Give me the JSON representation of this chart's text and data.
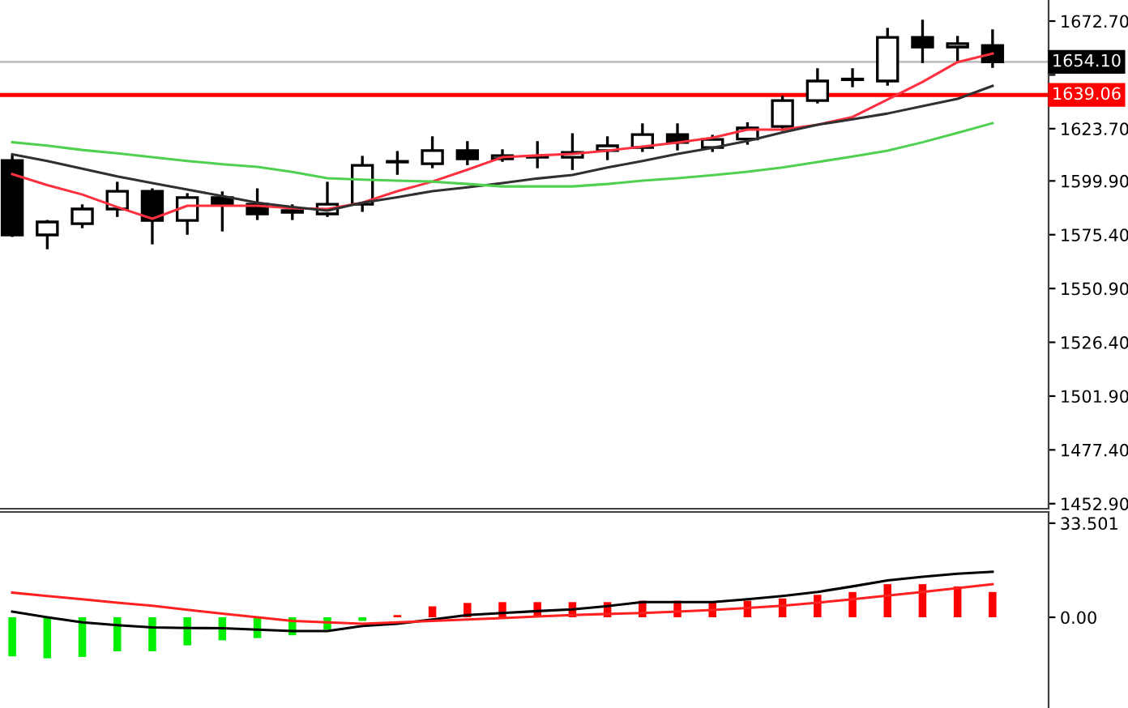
{
  "chart_data": [
    {
      "type": "candlestick",
      "categories": [
        null,
        null,
        null,
        null,
        null,
        null,
        null,
        null,
        null,
        null,
        null,
        null,
        null,
        null,
        null,
        null,
        null,
        null,
        null,
        null,
        null,
        null,
        null,
        null,
        null,
        null,
        null,
        null,
        null
      ],
      "ohlc": [
        [
          1609.2,
          1611.0,
          1575.0,
          1575.3
        ],
        [
          1575.3,
          1581.5,
          1569.4,
          1581.2
        ],
        [
          1580.4,
          1588.6,
          1579.0,
          1587.1
        ],
        [
          1587.1,
          1598.9,
          1584.1,
          1595.2
        ],
        [
          1595.2,
          1595.9,
          1571.6,
          1581.9
        ],
        [
          1581.9,
          1593.7,
          1576.0,
          1592.3
        ],
        [
          1592.3,
          1594.5,
          1577.5,
          1589.3
        ],
        [
          1589.3,
          1595.9,
          1582.7,
          1584.9
        ],
        [
          1585.6,
          1588.6,
          1582.7,
          1586.4
        ],
        [
          1584.9,
          1598.9,
          1584.1,
          1589.3
        ],
        [
          1589.3,
          1610.7,
          1586.4,
          1607.0
        ],
        [
          1608.5,
          1612.9,
          1603.3,
          1608.8
        ],
        [
          1607.7,
          1619.6,
          1606.3,
          1613.7
        ],
        [
          1613.7,
          1617.4,
          1607.7,
          1610.0
        ],
        [
          1610.0,
          1613.7,
          1609.2,
          1611.4
        ],
        [
          1610.7,
          1617.4,
          1606.3,
          1610.9
        ],
        [
          1610.7,
          1621.0,
          1605.5,
          1612.9
        ],
        [
          1613.7,
          1619.6,
          1610.0,
          1615.9
        ],
        [
          1615.1,
          1625.5,
          1613.7,
          1621.0
        ],
        [
          1621.0,
          1625.5,
          1614.4,
          1617.4
        ],
        [
          1615.1,
          1620.3,
          1613.7,
          1618.8
        ],
        [
          1619.0,
          1626.0,
          1617.0,
          1624.0
        ],
        [
          1624.7,
          1638.0,
          1623.3,
          1636.5
        ],
        [
          1636.5,
          1650.6,
          1635.8,
          1645.4
        ],
        [
          1646.0,
          1650.6,
          1643.2,
          1646.2
        ],
        [
          1645.4,
          1669.0,
          1643.9,
          1665.3
        ],
        [
          1665.3,
          1672.7,
          1654.2,
          1660.9
        ],
        [
          1660.9,
          1665.3,
          1655.0,
          1662.4
        ],
        [
          1661.6,
          1668.3,
          1652.0,
          1654.1
        ]
      ],
      "series": [
        {
          "type": "line",
          "color": "#ff3040",
          "values": [
            1603.0,
            1598.0,
            1593.7,
            1588.0,
            1582.7,
            1588.6,
            1588.6,
            1588.6,
            1587.5,
            1587.1,
            1590.0,
            1595.2,
            1599.6,
            1605.0,
            1610.7,
            1611.5,
            1612.2,
            1613.7,
            1615.5,
            1617.4,
            1619.6,
            1623.3,
            1623.3,
            1625.5,
            1629.0,
            1637.0,
            1645.0,
            1654.0,
            1657.9
          ]
        },
        {
          "type": "line",
          "color": "#303030",
          "values": [
            1612.0,
            1609.0,
            1605.5,
            1602.0,
            1598.9,
            1596.0,
            1593.0,
            1590.0,
            1588.0,
            1586.4,
            1590.0,
            1592.5,
            1595.2,
            1597.0,
            1598.9,
            1601.0,
            1602.6,
            1606.0,
            1609.0,
            1612.2,
            1615.0,
            1618.1,
            1622.0,
            1625.5,
            1628.0,
            1630.6,
            1634.0,
            1637.3,
            1643.2
          ]
        },
        {
          "type": "line",
          "color": "#50d050",
          "values": [
            1617.5,
            1616.0,
            1614.0,
            1612.5,
            1610.7,
            1609.0,
            1607.5,
            1606.3,
            1604.0,
            1601.1,
            1600.5,
            1600.0,
            1599.6,
            1598.5,
            1597.4,
            1597.4,
            1597.4,
            1598.5,
            1600.0,
            1601.1,
            1602.5,
            1604.1,
            1606.0,
            1608.5,
            1611.0,
            1613.7,
            1617.5,
            1621.8,
            1626.2
          ]
        }
      ],
      "ref_lines": [
        {
          "axis": "y",
          "value": 1654.1,
          "label": "1654.10",
          "color": "#c0c0c0"
        },
        {
          "axis": "y",
          "value": 1639.06,
          "label": "1639.06",
          "color": "#ff0000"
        }
      ],
      "ylim": [
        1450.6,
        1682.3
      ],
      "yticks": [
        {
          "value": 1672.7,
          "label": "1672.70"
        },
        {
          "value": 1648.2,
          "label": null
        },
        {
          "value": 1623.7,
          "label": "1623.70"
        },
        {
          "value": 1599.9,
          "label": "1599.90"
        },
        {
          "value": 1575.4,
          "label": "1575.40"
        },
        {
          "value": 1550.9,
          "label": "1550.90"
        },
        {
          "value": 1526.4,
          "label": "1526.40"
        },
        {
          "value": 1501.9,
          "label": "1501.90"
        },
        {
          "value": 1477.4,
          "label": "1477.40"
        },
        {
          "value": 1452.9,
          "label": "1452.90"
        }
      ],
      "tick_labels": "y"
    },
    {
      "type": "bar",
      "categories": [
        null,
        null,
        null,
        null,
        null,
        null,
        null,
        null,
        null,
        null,
        null,
        null,
        null,
        null,
        null,
        null,
        null,
        null,
        null,
        null,
        null,
        null,
        null,
        null,
        null,
        null,
        null,
        null,
        null
      ],
      "series": [
        {
          "type": "bar",
          "values": [
            -13.9,
            -14.6,
            -14.1,
            -12.1,
            -12.1,
            -10.0,
            -8.2,
            -7.4,
            -6.4,
            -4.4,
            -1.3,
            0.8,
            3.9,
            5.1,
            5.4,
            5.4,
            5.4,
            5.4,
            5.9,
            5.9,
            5.4,
            5.9,
            6.7,
            8.0,
            9.0,
            11.8,
            11.8,
            11.0,
            9.0
          ],
          "colors": [
            "#00ee00",
            "#00ee00",
            "#00ee00",
            "#00ee00",
            "#00ee00",
            "#00ee00",
            "#00ee00",
            "#00ee00",
            "#00ee00",
            "#00ee00",
            "#00ee00",
            "#ff0000",
            "#ff0000",
            "#ff0000",
            "#ff0000",
            "#ff0000",
            "#ff0000",
            "#ff0000",
            "#ff0000",
            "#ff0000",
            "#ff0000",
            "#ff0000",
            "#ff0000",
            "#ff0000",
            "#ff0000",
            "#ff0000",
            "#ff0000",
            "#ff0000",
            "#ff0000"
          ]
        },
        {
          "type": "line",
          "color": "#000000",
          "values": [
            2.0,
            0,
            -1.8,
            -2.8,
            -3.6,
            -3.8,
            -3.9,
            -4.4,
            -4.9,
            -4.9,
            -3.1,
            -2.3,
            -0.8,
            0.8,
            1.5,
            2.2,
            2.8,
            4.0,
            5.4,
            5.4,
            5.4,
            6.4,
            7.6,
            9.0,
            11.0,
            13.1,
            14.4,
            15.5,
            16.2
          ]
        },
        {
          "type": "line",
          "color": "#ff2020",
          "values": [
            8.8,
            7.6,
            6.4,
            5.2,
            4.1,
            2.7,
            1.3,
            0,
            -1.3,
            -1.8,
            -2.3,
            -1.8,
            -1.3,
            -0.8,
            -0.3,
            0.3,
            0.8,
            1.2,
            1.5,
            2.0,
            2.6,
            3.3,
            4.1,
            5.2,
            6.4,
            7.7,
            9.0,
            10.4,
            11.8
          ]
        }
      ],
      "ylim": [
        -32.3,
        37.5
      ],
      "yticks": [
        {
          "value": 33.501,
          "label": "33.501"
        },
        {
          "value": 0,
          "label": "0.00"
        }
      ],
      "tick_labels": "y"
    }
  ]
}
